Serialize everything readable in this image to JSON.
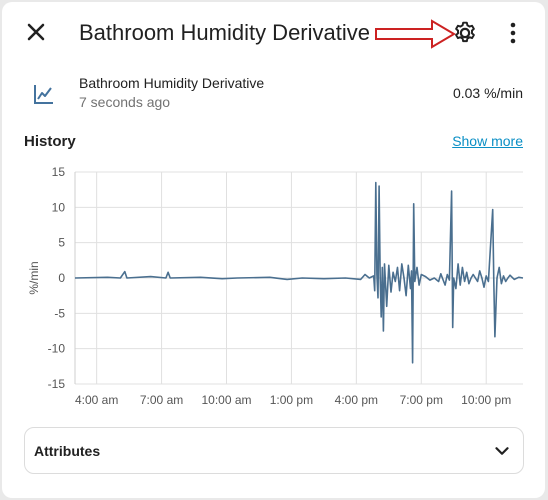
{
  "header": {
    "title": "Bathroom Humidity Derivative",
    "close_icon": "close-icon",
    "settings_icon": "gear-icon",
    "more_icon": "more-vertical-icon",
    "annotation_arrow_color": "#cc2222"
  },
  "entity": {
    "icon": "chart-line-icon",
    "name": "Bathroom Humidity Derivative",
    "last_changed": "7 seconds ago",
    "state": "0.03 %/min"
  },
  "history": {
    "title": "History",
    "show_more": "Show more"
  },
  "chart_data": {
    "type": "line",
    "title": "",
    "xlabel": "",
    "ylabel": "%/min",
    "ylim": [
      -15,
      15
    ],
    "yticks": [
      "15",
      "10",
      "5",
      "0",
      "-5",
      "-10",
      "-15"
    ],
    "xticks": [
      "4:00 am",
      "7:00 am",
      "10:00 am",
      "1:00 pm",
      "4:00 pm",
      "7:00 pm",
      "10:00 pm"
    ],
    "x_unit": "hours since midnight",
    "xlim": [
      3.0,
      23.7
    ],
    "grid": true,
    "line_color": "#4a6f8f",
    "series": [
      {
        "name": "",
        "points": [
          [
            3.0,
            0.0
          ],
          [
            4.5,
            0.1
          ],
          [
            5.1,
            0.0
          ],
          [
            5.3,
            0.9
          ],
          [
            5.4,
            0.0
          ],
          [
            6.5,
            0.2
          ],
          [
            7.2,
            0.0
          ],
          [
            7.3,
            0.8
          ],
          [
            7.4,
            0.0
          ],
          [
            8.8,
            0.1
          ],
          [
            9.8,
            -0.1
          ],
          [
            10.5,
            0.0
          ],
          [
            12.0,
            0.1
          ],
          [
            12.8,
            -0.2
          ],
          [
            13.5,
            0.0
          ],
          [
            14.5,
            -0.1
          ],
          [
            15.5,
            0.0
          ],
          [
            16.2,
            -0.2
          ],
          [
            16.4,
            0.5
          ],
          [
            16.6,
            0.0
          ],
          [
            16.8,
            0.3
          ],
          [
            16.85,
            -1.8
          ],
          [
            16.9,
            13.5
          ],
          [
            16.95,
            0.5
          ],
          [
            17.0,
            -2.8
          ],
          [
            17.05,
            13.0
          ],
          [
            17.1,
            0.0
          ],
          [
            17.15,
            -5.5
          ],
          [
            17.2,
            1.5
          ],
          [
            17.25,
            -7.5
          ],
          [
            17.3,
            2.0
          ],
          [
            17.35,
            -1.0
          ],
          [
            17.4,
            -4.0
          ],
          [
            17.5,
            1.8
          ],
          [
            17.6,
            -2.0
          ],
          [
            17.7,
            0.8
          ],
          [
            17.8,
            -0.5
          ],
          [
            17.9,
            1.5
          ],
          [
            18.0,
            -1.8
          ],
          [
            18.1,
            2.0
          ],
          [
            18.2,
            0.0
          ],
          [
            18.3,
            -2.5
          ],
          [
            18.4,
            1.8
          ],
          [
            18.5,
            -1.5
          ],
          [
            18.55,
            1.0
          ],
          [
            18.6,
            -12.0
          ],
          [
            18.65,
            10.5
          ],
          [
            18.7,
            -0.5
          ],
          [
            18.8,
            1.5
          ],
          [
            18.9,
            -1.0
          ],
          [
            19.0,
            0.5
          ],
          [
            19.2,
            0.2
          ],
          [
            19.4,
            -0.3
          ],
          [
            19.6,
            0.0
          ],
          [
            19.8,
            -0.5
          ],
          [
            19.9,
            0.6
          ],
          [
            20.0,
            -0.2
          ],
          [
            20.1,
            -1.0
          ],
          [
            20.2,
            0.5
          ],
          [
            20.3,
            -0.3
          ],
          [
            20.4,
            12.3
          ],
          [
            20.45,
            -7.0
          ],
          [
            20.5,
            0.0
          ],
          [
            20.6,
            -1.5
          ],
          [
            20.7,
            2.0
          ],
          [
            20.8,
            -1.0
          ],
          [
            20.9,
            1.5
          ],
          [
            21.0,
            -0.5
          ],
          [
            21.1,
            0.8
          ],
          [
            21.2,
            -0.8
          ],
          [
            21.3,
            0.0
          ],
          [
            21.4,
            0.5
          ],
          [
            21.6,
            -0.5
          ],
          [
            21.7,
            1.0
          ],
          [
            21.8,
            0.0
          ],
          [
            21.9,
            -1.3
          ],
          [
            22.0,
            0.3
          ],
          [
            22.1,
            -0.5
          ],
          [
            22.3,
            9.7
          ],
          [
            22.35,
            -0.5
          ],
          [
            22.4,
            -8.3
          ],
          [
            22.5,
            0.0
          ],
          [
            22.6,
            1.5
          ],
          [
            22.7,
            -0.8
          ],
          [
            22.8,
            0.3
          ],
          [
            22.9,
            -0.5
          ],
          [
            23.0,
            0.0
          ],
          [
            23.1,
            0.4
          ],
          [
            23.3,
            -0.2
          ],
          [
            23.5,
            0.1
          ],
          [
            23.7,
            0.0
          ]
        ]
      }
    ]
  },
  "attributes": {
    "label": "Attributes",
    "chevron_icon": "chevron-down-icon"
  }
}
